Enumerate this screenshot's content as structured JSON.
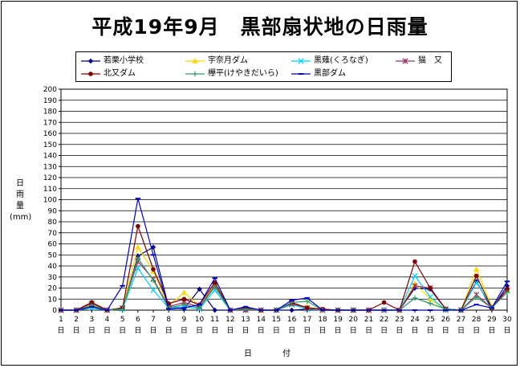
{
  "chart_data": {
    "type": "line",
    "title": "平成19年9月　黒部扇状地の日雨量",
    "ylabel": "日\n雨\n量\n(mm)",
    "xlabel": "日　付",
    "ylim": [
      0,
      200
    ],
    "ytick_step": 10,
    "categories": [
      "1日",
      "2日",
      "3日",
      "4日",
      "5日",
      "6日",
      "7日",
      "8日",
      "9日",
      "10日",
      "11日",
      "12日",
      "13日",
      "14日",
      "15日",
      "16日",
      "17日",
      "18日",
      "19日",
      "20日",
      "21日",
      "22日",
      "23日",
      "24日",
      "25日",
      "26日",
      "27日",
      "28日",
      "29日",
      "30日"
    ],
    "grid": true,
    "legend_position": "top",
    "series": [
      {
        "name": "若栗小学校",
        "color": "#000080",
        "marker": "diamond",
        "values": [
          0,
          0,
          7,
          0,
          1,
          49,
          57,
          3,
          1,
          19,
          0,
          0,
          0,
          0,
          0,
          0,
          1,
          0,
          0,
          0,
          0,
          0,
          0,
          20,
          19,
          1,
          0,
          26,
          1,
          22
        ]
      },
      {
        "name": "宇奈月ダム",
        "color": "#FFD700",
        "marker": "triangle",
        "values": [
          0,
          0,
          5,
          0,
          2,
          57,
          35,
          4,
          16,
          4,
          24,
          0,
          1,
          0,
          0,
          5,
          3,
          0,
          0,
          0,
          0,
          0,
          0,
          24,
          10,
          0,
          0,
          37,
          3,
          18
        ]
      },
      {
        "name": "黒薙(くろなぎ)",
        "color": "#00CCFF",
        "marker": "x",
        "values": [
          0,
          0,
          2,
          0,
          1,
          38,
          18,
          2,
          3,
          1,
          18,
          0,
          1,
          0,
          0,
          5,
          1,
          0,
          0,
          0,
          0,
          0,
          0,
          31,
          12,
          0,
          0,
          25,
          3,
          18
        ]
      },
      {
        "name": "猫　又",
        "color": "#993366",
        "marker": "star",
        "values": [
          0,
          0,
          6,
          0,
          2,
          44,
          28,
          3,
          7,
          3,
          22,
          0,
          0,
          0,
          0,
          6,
          2,
          0,
          0,
          0,
          0,
          0,
          0,
          22,
          20,
          1,
          0,
          14,
          2,
          18
        ]
      },
      {
        "name": "北又ダム",
        "color": "#800000",
        "marker": "circle",
        "values": [
          0,
          0,
          7,
          0,
          2,
          76,
          37,
          6,
          10,
          5,
          25,
          0,
          2,
          0,
          0,
          7,
          2,
          1,
          0,
          0,
          0,
          7,
          0,
          44,
          20,
          1,
          0,
          31,
          2,
          19
        ]
      },
      {
        "name": "欅平(けやきだいら)",
        "color": "#339966",
        "marker": "plus",
        "values": [
          0,
          0,
          4,
          0,
          1,
          47,
          27,
          2,
          5,
          2,
          21,
          0,
          1,
          0,
          0,
          7,
          8,
          0,
          0,
          0,
          0,
          0,
          0,
          11,
          6,
          1,
          0,
          12,
          2,
          16
        ]
      },
      {
        "name": "黒部ダム",
        "color": "#0000CC",
        "marker": "dash",
        "values": [
          0,
          0,
          3,
          0,
          22,
          101,
          50,
          1,
          2,
          5,
          29,
          0,
          3,
          0,
          0,
          9,
          11,
          0,
          0,
          0,
          0,
          0,
          0,
          0,
          0,
          0,
          0,
          5,
          2,
          26
        ]
      }
    ]
  }
}
